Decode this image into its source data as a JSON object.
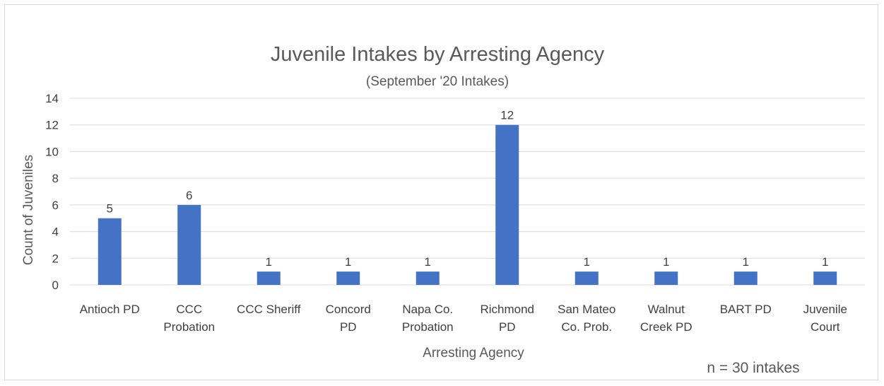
{
  "chart_data": {
    "type": "bar",
    "title": "Juvenile Intakes by Arresting Agency",
    "subtitle": "(September '20 Intakes)",
    "xlabel": "Arresting Agency",
    "ylabel": "Count of Juveniles",
    "ylim": [
      0,
      14
    ],
    "yticks": [
      0,
      2,
      4,
      6,
      8,
      10,
      12,
      14
    ],
    "grid": true,
    "legend": "none",
    "bar_color": "#4472c4",
    "categories": [
      [
        "Antioch PD"
      ],
      [
        "CCC",
        "Probation"
      ],
      [
        "CCC Sheriff"
      ],
      [
        "Concord",
        "PD"
      ],
      [
        "Napa Co.",
        "Probation"
      ],
      [
        "Richmond",
        "PD"
      ],
      [
        "San Mateo",
        "Co. Prob."
      ],
      [
        "Walnut",
        "Creek PD"
      ],
      [
        "BART PD"
      ],
      [
        "Juvenile",
        "Court"
      ]
    ],
    "values": [
      5,
      6,
      1,
      1,
      1,
      12,
      1,
      1,
      1,
      1
    ],
    "annotation": "n = 30 intakes"
  }
}
